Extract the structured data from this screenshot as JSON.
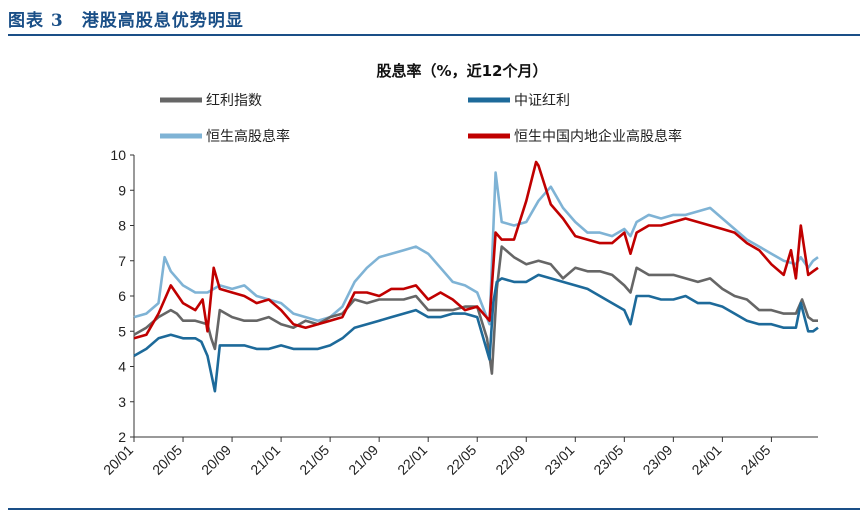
{
  "figure": {
    "title": "图表 3　港股高股息优势明显"
  },
  "chart_data": {
    "type": "line",
    "title": "股息率（%，近12个月）",
    "xlabel": "",
    "ylabel": "",
    "ylim": [
      2,
      10
    ],
    "yticks": [
      "2",
      "3",
      "4",
      "5",
      "6",
      "7",
      "8",
      "9",
      "10"
    ],
    "xticks": [
      "20/01",
      "20/05",
      "20/09",
      "21/01",
      "21/05",
      "21/09",
      "22/01",
      "22/05",
      "22/09",
      "23/01",
      "23/05",
      "23/09",
      "24/01",
      "24/05"
    ],
    "x_range_months": [
      0,
      55.8
    ],
    "grid": false,
    "legend": "top",
    "series": [
      {
        "name": "红利指数",
        "color": "#666666",
        "points": [
          [
            0,
            4.9
          ],
          [
            1,
            5.1
          ],
          [
            2,
            5.4
          ],
          [
            3,
            5.6
          ],
          [
            3.5,
            5.5
          ],
          [
            4,
            5.3
          ],
          [
            5,
            5.3
          ],
          [
            6,
            5.2
          ],
          [
            6.3,
            4.8
          ],
          [
            6.6,
            4.5
          ],
          [
            7,
            5.6
          ],
          [
            7.5,
            5.5
          ],
          [
            8,
            5.4
          ],
          [
            9,
            5.3
          ],
          [
            10,
            5.3
          ],
          [
            11,
            5.4
          ],
          [
            12,
            5.2
          ],
          [
            13,
            5.1
          ],
          [
            14,
            5.3
          ],
          [
            15,
            5.2
          ],
          [
            16,
            5.4
          ],
          [
            17,
            5.5
          ],
          [
            18,
            5.9
          ],
          [
            19,
            5.8
          ],
          [
            20,
            5.9
          ],
          [
            21,
            5.9
          ],
          [
            22,
            5.9
          ],
          [
            23,
            6.0
          ],
          [
            24,
            5.6
          ],
          [
            25,
            5.6
          ],
          [
            26,
            5.6
          ],
          [
            27,
            5.7
          ],
          [
            28,
            5.7
          ],
          [
            28.8,
            4.8
          ],
          [
            29.2,
            3.8
          ],
          [
            29.6,
            6.2
          ],
          [
            30,
            7.4
          ],
          [
            31,
            7.1
          ],
          [
            32,
            6.9
          ],
          [
            33,
            7.0
          ],
          [
            34,
            6.9
          ],
          [
            35,
            6.5
          ],
          [
            36,
            6.8
          ],
          [
            37,
            6.7
          ],
          [
            38,
            6.7
          ],
          [
            39,
            6.6
          ],
          [
            40,
            6.3
          ],
          [
            40.5,
            6.1
          ],
          [
            41,
            6.8
          ],
          [
            42,
            6.6
          ],
          [
            43,
            6.6
          ],
          [
            44,
            6.6
          ],
          [
            45,
            6.5
          ],
          [
            46,
            6.4
          ],
          [
            47,
            6.5
          ],
          [
            48,
            6.2
          ],
          [
            49,
            6.0
          ],
          [
            50,
            5.9
          ],
          [
            51,
            5.6
          ],
          [
            52,
            5.6
          ],
          [
            53,
            5.5
          ],
          [
            54,
            5.5
          ],
          [
            54.5,
            5.9
          ],
          [
            55,
            5.4
          ],
          [
            55.4,
            5.3
          ],
          [
            55.8,
            5.3
          ]
        ]
      },
      {
        "name": "中证红利",
        "color": "#1d6a9a",
        "points": [
          [
            0,
            4.3
          ],
          [
            1,
            4.5
          ],
          [
            2,
            4.8
          ],
          [
            3,
            4.9
          ],
          [
            4,
            4.8
          ],
          [
            5,
            4.8
          ],
          [
            5.5,
            4.7
          ],
          [
            6,
            4.3
          ],
          [
            6.3,
            3.8
          ],
          [
            6.6,
            3.3
          ],
          [
            7,
            4.6
          ],
          [
            8,
            4.6
          ],
          [
            9,
            4.6
          ],
          [
            10,
            4.5
          ],
          [
            11,
            4.5
          ],
          [
            12,
            4.6
          ],
          [
            13,
            4.5
          ],
          [
            14,
            4.5
          ],
          [
            15,
            4.5
          ],
          [
            16,
            4.6
          ],
          [
            17,
            4.8
          ],
          [
            18,
            5.1
          ],
          [
            19,
            5.2
          ],
          [
            20,
            5.3
          ],
          [
            21,
            5.4
          ],
          [
            22,
            5.5
          ],
          [
            23,
            5.6
          ],
          [
            24,
            5.4
          ],
          [
            25,
            5.4
          ],
          [
            26,
            5.5
          ],
          [
            27,
            5.5
          ],
          [
            28,
            5.4
          ],
          [
            29,
            4.2
          ],
          [
            29.3,
            5.8
          ],
          [
            29.6,
            6.4
          ],
          [
            30,
            6.5
          ],
          [
            31,
            6.4
          ],
          [
            32,
            6.4
          ],
          [
            33,
            6.6
          ],
          [
            34,
            6.5
          ],
          [
            35,
            6.4
          ],
          [
            36,
            6.3
          ],
          [
            37,
            6.2
          ],
          [
            38,
            6.0
          ],
          [
            39,
            5.8
          ],
          [
            40,
            5.6
          ],
          [
            40.5,
            5.2
          ],
          [
            41,
            6.0
          ],
          [
            42,
            6.0
          ],
          [
            43,
            5.9
          ],
          [
            44,
            5.9
          ],
          [
            45,
            6.0
          ],
          [
            46,
            5.8
          ],
          [
            47,
            5.8
          ],
          [
            48,
            5.7
          ],
          [
            49,
            5.5
          ],
          [
            50,
            5.3
          ],
          [
            51,
            5.2
          ],
          [
            52,
            5.2
          ],
          [
            53,
            5.1
          ],
          [
            54,
            5.1
          ],
          [
            54.4,
            5.8
          ],
          [
            55,
            5.0
          ],
          [
            55.4,
            5.0
          ],
          [
            55.8,
            5.1
          ]
        ]
      },
      {
        "name": "恒生高股息率",
        "color": "#7fb3d5",
        "points": [
          [
            0,
            5.4
          ],
          [
            1,
            5.5
          ],
          [
            2,
            5.8
          ],
          [
            2.5,
            7.1
          ],
          [
            3,
            6.7
          ],
          [
            4,
            6.3
          ],
          [
            5,
            6.1
          ],
          [
            6,
            6.1
          ],
          [
            7,
            6.3
          ],
          [
            8,
            6.2
          ],
          [
            9,
            6.3
          ],
          [
            10,
            6.0
          ],
          [
            11,
            5.9
          ],
          [
            12,
            5.8
          ],
          [
            13,
            5.5
          ],
          [
            14,
            5.4
          ],
          [
            15,
            5.3
          ],
          [
            16,
            5.4
          ],
          [
            17,
            5.7
          ],
          [
            18,
            6.4
          ],
          [
            19,
            6.8
          ],
          [
            20,
            7.1
          ],
          [
            21,
            7.2
          ],
          [
            22,
            7.3
          ],
          [
            23,
            7.4
          ],
          [
            24,
            7.2
          ],
          [
            25,
            6.8
          ],
          [
            26,
            6.4
          ],
          [
            27,
            6.3
          ],
          [
            28,
            6.1
          ],
          [
            29,
            5.2
          ],
          [
            29.5,
            9.5
          ],
          [
            30,
            8.1
          ],
          [
            31,
            8.0
          ],
          [
            32,
            8.1
          ],
          [
            33,
            8.7
          ],
          [
            34,
            9.1
          ],
          [
            35,
            8.5
          ],
          [
            36,
            8.1
          ],
          [
            37,
            7.8
          ],
          [
            38,
            7.8
          ],
          [
            39,
            7.7
          ],
          [
            40,
            7.9
          ],
          [
            40.5,
            7.7
          ],
          [
            41,
            8.1
          ],
          [
            42,
            8.3
          ],
          [
            43,
            8.2
          ],
          [
            44,
            8.3
          ],
          [
            45,
            8.3
          ],
          [
            46,
            8.4
          ],
          [
            47,
            8.5
          ],
          [
            48,
            8.2
          ],
          [
            49,
            7.9
          ],
          [
            50,
            7.6
          ],
          [
            51,
            7.4
          ],
          [
            52,
            7.2
          ],
          [
            53,
            7.0
          ],
          [
            54,
            6.9
          ],
          [
            54.4,
            7.1
          ],
          [
            55,
            6.8
          ],
          [
            55.4,
            7.0
          ],
          [
            55.8,
            7.1
          ]
        ]
      },
      {
        "name": "恒生中国内地企业高股息率",
        "color": "#c00000",
        "points": [
          [
            0,
            4.8
          ],
          [
            1,
            4.9
          ],
          [
            2,
            5.5
          ],
          [
            3,
            6.3
          ],
          [
            4,
            5.8
          ],
          [
            5,
            5.6
          ],
          [
            5.6,
            5.9
          ],
          [
            6,
            5.0
          ],
          [
            6.5,
            6.8
          ],
          [
            7,
            6.2
          ],
          [
            8,
            6.1
          ],
          [
            9,
            6.0
          ],
          [
            10,
            5.8
          ],
          [
            11,
            5.9
          ],
          [
            12,
            5.6
          ],
          [
            13,
            5.2
          ],
          [
            14,
            5.1
          ],
          [
            15,
            5.2
          ],
          [
            16,
            5.3
          ],
          [
            17,
            5.4
          ],
          [
            18,
            6.1
          ],
          [
            19,
            6.1
          ],
          [
            20,
            6.0
          ],
          [
            21,
            6.2
          ],
          [
            22,
            6.2
          ],
          [
            23,
            6.3
          ],
          [
            24,
            5.9
          ],
          [
            25,
            6.1
          ],
          [
            26,
            5.9
          ],
          [
            27,
            5.6
          ],
          [
            28,
            5.7
          ],
          [
            29,
            5.3
          ],
          [
            29.5,
            7.8
          ],
          [
            30,
            7.6
          ],
          [
            31,
            7.6
          ],
          [
            32,
            8.7
          ],
          [
            32.8,
            9.8
          ],
          [
            33,
            9.7
          ],
          [
            34,
            8.6
          ],
          [
            35,
            8.2
          ],
          [
            36,
            7.7
          ],
          [
            37,
            7.6
          ],
          [
            38,
            7.5
          ],
          [
            39,
            7.5
          ],
          [
            40,
            7.8
          ],
          [
            40.5,
            7.2
          ],
          [
            41,
            7.8
          ],
          [
            42,
            8.0
          ],
          [
            43,
            8.0
          ],
          [
            44,
            8.1
          ],
          [
            45,
            8.2
          ],
          [
            46,
            8.1
          ],
          [
            47,
            8.0
          ],
          [
            48,
            7.9
          ],
          [
            49,
            7.8
          ],
          [
            50,
            7.5
          ],
          [
            51,
            7.3
          ],
          [
            52,
            6.9
          ],
          [
            53,
            6.6
          ],
          [
            53.6,
            7.3
          ],
          [
            54,
            6.5
          ],
          [
            54.4,
            8.0
          ],
          [
            55,
            6.6
          ],
          [
            55.4,
            6.7
          ],
          [
            55.8,
            6.8
          ]
        ]
      }
    ]
  }
}
